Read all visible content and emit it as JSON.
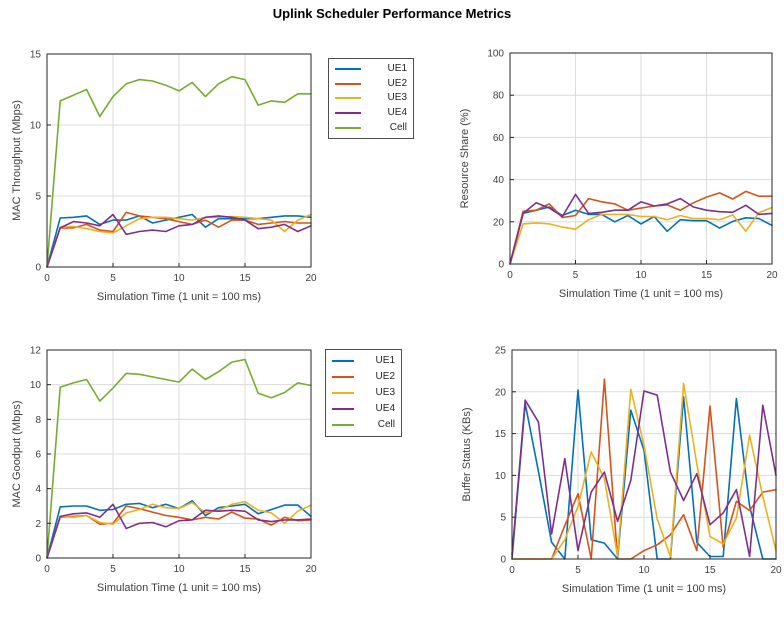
{
  "title": "Uplink Scheduler Performance Metrics",
  "colors": {
    "UE1": "#0072BD",
    "UE2": "#D95319",
    "UE3": "#EDB120",
    "UE4": "#7E2F8E",
    "Cell": "#77AC30"
  },
  "axis_style": {
    "grid_color": "#DCDCDC",
    "axis_color": "#262626",
    "tick_label_color": "#404040"
  },
  "legend": {
    "entries": [
      {
        "label": "UE1",
        "color": "#0072BD"
      },
      {
        "label": "UE2",
        "color": "#D95319"
      },
      {
        "label": "UE3",
        "color": "#EDB120"
      },
      {
        "label": "UE4",
        "color": "#7E2F8E"
      },
      {
        "label": "Cell",
        "color": "#77AC30"
      }
    ]
  },
  "chart_data": [
    {
      "id": "mac-throughput",
      "type": "line",
      "title": "",
      "xlabel": "Simulation Time (1 unit = 100 ms)",
      "ylabel": "MAC Throughput (Mbps)",
      "xlim": [
        0,
        20
      ],
      "ylim": [
        0,
        15
      ],
      "xticks": [
        0,
        5,
        10,
        15,
        20
      ],
      "yticks": [
        0,
        5,
        10,
        15
      ],
      "grid": true,
      "legend_position": "outside-right",
      "x": [
        0,
        1,
        2,
        3,
        4,
        5,
        6,
        7,
        8,
        9,
        10,
        11,
        12,
        13,
        14,
        15,
        16,
        17,
        18,
        19,
        20
      ],
      "series": [
        {
          "name": "UE1",
          "color": "#0072BD",
          "values": [
            0,
            3.45,
            3.5,
            3.6,
            3.0,
            3.3,
            3.3,
            3.6,
            3.1,
            3.3,
            3.5,
            3.7,
            2.8,
            3.4,
            3.4,
            3.4,
            3.4,
            3.5,
            3.6,
            3.6,
            3.5
          ]
        },
        {
          "name": "UE2",
          "color": "#D95319",
          "values": [
            0,
            2.75,
            2.75,
            3.0,
            2.6,
            2.5,
            3.85,
            3.6,
            3.5,
            3.4,
            3.2,
            3.0,
            3.3,
            2.8,
            3.3,
            3.3,
            3.0,
            3.1,
            3.2,
            3.1,
            3.1
          ]
        },
        {
          "name": "UE3",
          "color": "#EDB120",
          "values": [
            0,
            2.8,
            2.85,
            2.7,
            2.5,
            2.4,
            2.9,
            3.4,
            3.5,
            3.5,
            3.4,
            3.3,
            3.5,
            3.5,
            3.55,
            3.5,
            3.4,
            3.3,
            2.5,
            3.3,
            3.7
          ]
        },
        {
          "name": "UE4",
          "color": "#7E2F8E",
          "values": [
            0,
            2.75,
            3.2,
            3.1,
            2.9,
            3.7,
            2.3,
            2.5,
            2.6,
            2.5,
            2.9,
            3.0,
            3.5,
            3.6,
            3.5,
            3.3,
            2.7,
            2.8,
            3.0,
            2.5,
            2.9
          ]
        },
        {
          "name": "Cell",
          "color": "#77AC30",
          "values": [
            0,
            11.7,
            12.1,
            12.5,
            10.6,
            12.0,
            12.9,
            13.2,
            13.1,
            12.8,
            12.4,
            13.0,
            12.0,
            12.9,
            13.4,
            13.2,
            11.4,
            11.7,
            11.6,
            12.2,
            12.2
          ]
        }
      ]
    },
    {
      "id": "resource-share",
      "type": "line",
      "title": "",
      "xlabel": "Simulation Time (1 unit = 100 ms)",
      "ylabel": "Resource Share (%)",
      "xlim": [
        0,
        20
      ],
      "ylim": [
        0,
        100
      ],
      "xticks": [
        0,
        5,
        10,
        15,
        20
      ],
      "yticks": [
        0,
        20,
        40,
        60,
        80,
        100
      ],
      "grid": true,
      "legend_position": "none",
      "x": [
        0,
        1,
        2,
        3,
        4,
        5,
        6,
        7,
        8,
        9,
        10,
        11,
        12,
        13,
        14,
        15,
        16,
        17,
        18,
        19,
        20
      ],
      "series": [
        {
          "name": "UE1",
          "color": "#0072BD",
          "values": [
            0,
            24,
            25.5,
            27,
            23,
            25.5,
            23.5,
            23.5,
            20,
            23,
            19,
            22.5,
            15.5,
            21,
            20.5,
            20.5,
            17,
            20.2,
            21.9,
            21.5,
            18.3
          ]
        },
        {
          "name": "UE2",
          "color": "#D95319",
          "values": [
            0,
            25,
            25.5,
            28.5,
            22,
            23,
            31,
            29.5,
            28.5,
            25.5,
            26.5,
            27.5,
            28,
            25.5,
            29,
            31.7,
            33.7,
            30.8,
            34.4,
            32.1,
            32.2
          ]
        },
        {
          "name": "UE3",
          "color": "#EDB120",
          "values": [
            0,
            19,
            19.5,
            19,
            17.5,
            16.5,
            21,
            23.5,
            23.5,
            23.5,
            22.5,
            22.5,
            21,
            23,
            21.5,
            21.5,
            21,
            23.2,
            15.6,
            24.3,
            26.8
          ]
        },
        {
          "name": "UE4",
          "color": "#7E2F8E",
          "values": [
            0,
            24,
            29,
            26.5,
            22.5,
            33,
            24,
            24.5,
            25.5,
            25.5,
            29.5,
            27.5,
            28.5,
            31,
            27,
            25.5,
            24.8,
            24.5,
            27.8,
            23.5,
            24
          ]
        }
      ]
    },
    {
      "id": "mac-goodput",
      "type": "line",
      "title": "",
      "xlabel": "Simulation Time (1 unit = 100 ms)",
      "ylabel": "MAC Goodput (Mbps)",
      "xlim": [
        0,
        20
      ],
      "ylim": [
        0,
        12
      ],
      "xticks": [
        0,
        5,
        10,
        15,
        20
      ],
      "yticks": [
        0,
        2,
        4,
        6,
        8,
        10,
        12
      ],
      "grid": true,
      "legend_position": "outside-right",
      "x": [
        0,
        1,
        2,
        3,
        4,
        5,
        6,
        7,
        8,
        9,
        10,
        11,
        12,
        13,
        14,
        15,
        16,
        17,
        18,
        19,
        20
      ],
      "series": [
        {
          "name": "UE1",
          "color": "#0072BD",
          "values": [
            0,
            2.95,
            3.0,
            3.0,
            2.75,
            2.8,
            3.1,
            3.15,
            2.9,
            3.1,
            2.85,
            3.3,
            2.45,
            2.9,
            3.0,
            3.1,
            2.55,
            2.8,
            3.05,
            3.05,
            2.4
          ]
        },
        {
          "name": "UE2",
          "color": "#D95319",
          "values": [
            0,
            2.35,
            2.4,
            2.45,
            1.95,
            2.0,
            3.0,
            2.85,
            2.65,
            2.45,
            2.35,
            2.2,
            2.35,
            2.25,
            2.65,
            2.3,
            2.25,
            1.9,
            2.35,
            2.15,
            2.2
          ]
        },
        {
          "name": "UE3",
          "color": "#EDB120",
          "values": [
            0,
            2.4,
            2.35,
            2.45,
            2.05,
            1.95,
            2.6,
            2.8,
            3.1,
            2.9,
            2.85,
            3.2,
            2.6,
            2.75,
            3.1,
            3.25,
            2.75,
            2.6,
            2.0,
            2.7,
            3.05
          ]
        },
        {
          "name": "UE4",
          "color": "#7E2F8E",
          "values": [
            0,
            2.4,
            2.55,
            2.6,
            2.35,
            3.1,
            1.7,
            2.0,
            2.05,
            1.8,
            2.15,
            2.2,
            2.75,
            2.7,
            2.75,
            2.7,
            2.2,
            2.1,
            2.2,
            2.2,
            2.25
          ]
        },
        {
          "name": "Cell",
          "color": "#77AC30",
          "values": [
            0,
            9.85,
            10.1,
            10.3,
            9.05,
            9.8,
            10.65,
            10.6,
            10.45,
            10.3,
            10.15,
            10.9,
            10.3,
            10.75,
            11.3,
            11.45,
            9.5,
            9.25,
            9.55,
            10.1,
            9.95
          ]
        }
      ]
    },
    {
      "id": "buffer-status",
      "type": "line",
      "title": "",
      "xlabel": "Simulation Time (1 unit = 100 ms)",
      "ylabel": "Buffer Status (KBs)",
      "xlim": [
        0,
        20
      ],
      "ylim": [
        0,
        25
      ],
      "xticks": [
        0,
        5,
        10,
        15,
        20
      ],
      "yticks": [
        0,
        5,
        10,
        15,
        20,
        25
      ],
      "grid": true,
      "legend_position": "none",
      "x": [
        0,
        1,
        2,
        3,
        4,
        5,
        6,
        7,
        8,
        9,
        10,
        11,
        12,
        13,
        14,
        15,
        16,
        17,
        18,
        19,
        20
      ],
      "series": [
        {
          "name": "UE1",
          "color": "#0072BD",
          "values": [
            0,
            18.6,
            10.5,
            2.0,
            0,
            20.2,
            2.3,
            1.9,
            0,
            17.8,
            13.0,
            0,
            0,
            19.4,
            2.0,
            0.3,
            0.3,
            19.2,
            6.3,
            0,
            0
          ]
        },
        {
          "name": "UE2",
          "color": "#D95319",
          "values": [
            0,
            0,
            0,
            0,
            4.0,
            7.8,
            0,
            21.5,
            0,
            0,
            1.0,
            1.7,
            2.9,
            5.3,
            1.0,
            18.3,
            1.4,
            6.9,
            5.8,
            8.0,
            8.3
          ]
        },
        {
          "name": "UE3",
          "color": "#EDB120",
          "values": [
            0,
            0,
            0,
            0,
            2.3,
            6.3,
            12.8,
            9.6,
            0.3,
            20.3,
            13.6,
            4.8,
            0.3,
            21.0,
            11.4,
            2.7,
            1.8,
            4.9,
            14.8,
            7.5,
            1.0
          ]
        },
        {
          "name": "UE4",
          "color": "#7E2F8E",
          "values": [
            0.5,
            19.0,
            16.4,
            3.0,
            12.0,
            1.0,
            8.0,
            10.4,
            4.5,
            9.4,
            20.1,
            19.6,
            10.4,
            7.0,
            10.2,
            4.1,
            5.5,
            8.3,
            0.3,
            18.4,
            10.0
          ]
        }
      ]
    }
  ]
}
